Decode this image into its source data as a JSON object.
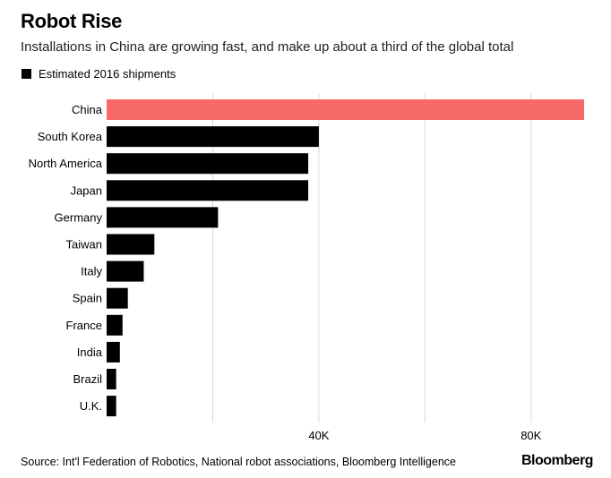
{
  "header": {
    "title": "Robot Rise",
    "subtitle": "Installations in China are growing fast, and make up about a third of the global total"
  },
  "legend": {
    "label": "Estimated 2016 shipments"
  },
  "footer": {
    "source": "Source: Int'l Federation of Robotics, National robot associations, Bloomberg Intelligence",
    "brand": "Bloomberg"
  },
  "chart_data": {
    "type": "bar",
    "orientation": "horizontal",
    "categories": [
      "China",
      "South Korea",
      "North America",
      "Japan",
      "Germany",
      "Taiwan",
      "Italy",
      "Spain",
      "France",
      "India",
      "Brazil",
      "U.K."
    ],
    "series": [
      {
        "name": "Estimated 2016 shipments",
        "values": [
          90000,
          40000,
          38000,
          38000,
          21000,
          9000,
          7000,
          4000,
          3000,
          2500,
          1800,
          1800
        ]
      }
    ],
    "highlight": {
      "category": "China",
      "color": "#f86a6a"
    },
    "bar_color": "#000000",
    "xlim": [
      0,
      90000
    ],
    "xticks": [
      {
        "value": 20000,
        "label": ""
      },
      {
        "value": 40000,
        "label": "40K"
      },
      {
        "value": 60000,
        "label": ""
      },
      {
        "value": 80000,
        "label": "80K"
      }
    ],
    "grid": true,
    "legend_position": "top-left",
    "title": "Robot Rise",
    "xlabel": "",
    "ylabel": ""
  }
}
